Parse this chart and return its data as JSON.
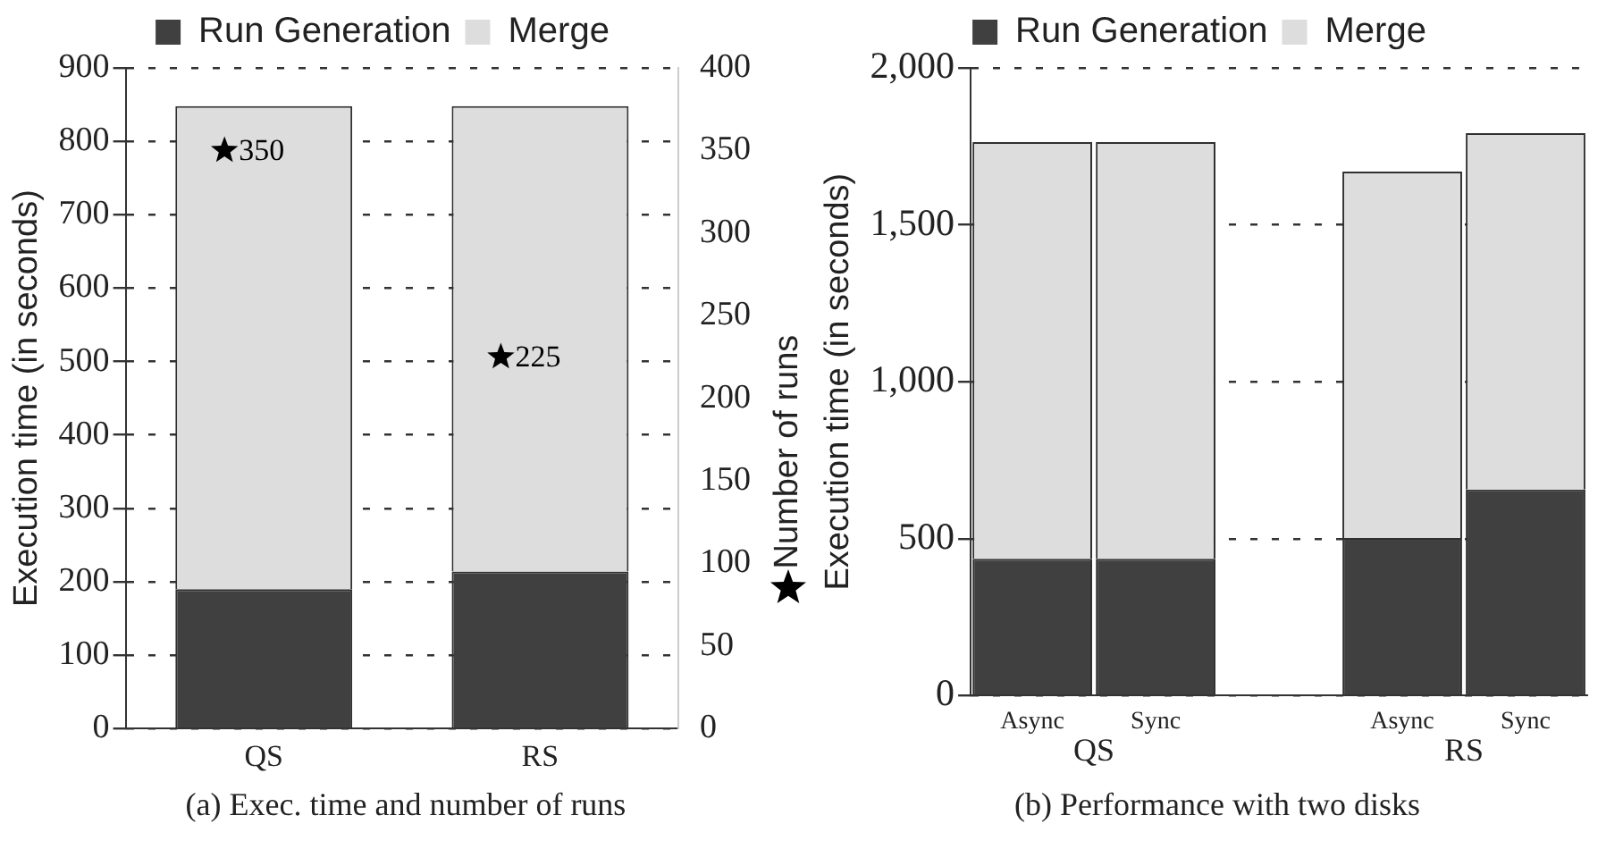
{
  "chart_data": [
    {
      "type": "bar",
      "title": "(a) Exec. time and number of runs",
      "categories": [
        "QS",
        "RS"
      ],
      "stacked": true,
      "ylabel": "Execution time (in seconds)",
      "y2label": "Number of runs",
      "ylim": [
        0,
        900
      ],
      "yticks": [
        0,
        100,
        200,
        300,
        400,
        500,
        600,
        700,
        800,
        900
      ],
      "y2lim": [
        0,
        400
      ],
      "y2ticks": [
        0,
        50,
        100,
        150,
        200,
        250,
        300,
        350,
        400
      ],
      "grid": "y",
      "legend": "top",
      "series": [
        {
          "name": "Run Generation",
          "color": "#404040",
          "values": [
            190,
            214
          ]
        },
        {
          "name": "Merge",
          "color": "#dcdddc",
          "values": [
            658,
            634
          ]
        },
        {
          "type": "scatter",
          "axis": "y2",
          "marker": "star",
          "color": "#000000",
          "x": [
            "QS",
            "RS"
          ],
          "values": [
            350,
            225
          ],
          "value_labels": [
            "350",
            "225"
          ]
        }
      ]
    },
    {
      "type": "bar",
      "title": "(b) Performance with two disks",
      "categories": [
        "Async",
        "Sync",
        null,
        "Async",
        "Sync"
      ],
      "stacked": true,
      "ylabel": "Execution time (in seconds)",
      "ylim": [
        0,
        2000
      ],
      "yticks": [
        0,
        500,
        {
          "value": 1000,
          "label": "1,000"
        },
        {
          "value": 1500,
          "label": "1,500"
        },
        {
          "value": 2000,
          "label": "2,000"
        }
      ],
      "grid": "y",
      "legend": "top",
      "annotations": [
        "QS",
        "RS"
      ],
      "series": [
        {
          "name": "Run Generation",
          "color": "#404040",
          "values": [
            436,
            436,
            null,
            502,
            657
          ]
        },
        {
          "name": "Merge",
          "color": "#dcdddc",
          "values": [
            1328,
            1328,
            null,
            1168,
            1135
          ]
        }
      ]
    }
  ]
}
